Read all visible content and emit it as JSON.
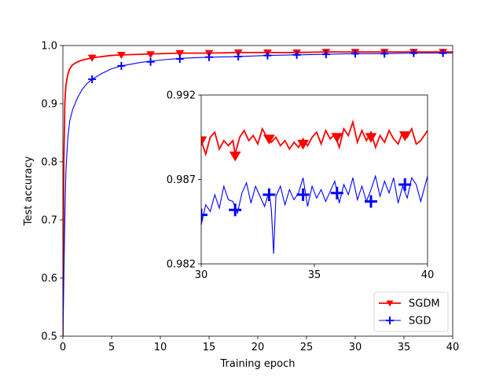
{
  "chart_data": [
    {
      "type": "line",
      "name": "main",
      "xlabel": "Training epoch",
      "ylabel": "Test accuracy",
      "xlim": [
        0,
        40
      ],
      "ylim": [
        0.5,
        1.0
      ],
      "xticks": [
        0,
        5,
        10,
        15,
        20,
        25,
        30,
        35,
        40
      ],
      "yticks": [
        0.5,
        0.6,
        0.7,
        0.8,
        0.9,
        1.0
      ],
      "xtick_labels": [
        "0",
        "5",
        "10",
        "15",
        "20",
        "25",
        "30",
        "35",
        "40"
      ],
      "ytick_labels": [
        "0.5",
        "0.6",
        "0.7",
        "0.8",
        "0.9",
        "1.0"
      ],
      "legend": {
        "position": "lower-right",
        "entries": [
          "SGDM",
          "SGD"
        ]
      },
      "series": [
        {
          "name": "SGDM",
          "color": "#ff0000",
          "marker": "triangle-down",
          "x": [
            0,
            0.1,
            0.2,
            0.3,
            0.5,
            0.7,
            1,
            1.5,
            2,
            3,
            4,
            5,
            6,
            8,
            10,
            12,
            15,
            18,
            21,
            24,
            27,
            30,
            33,
            36,
            40
          ],
          "y": [
            0.5,
            0.8,
            0.9,
            0.93,
            0.95,
            0.96,
            0.967,
            0.972,
            0.975,
            0.979,
            0.981,
            0.983,
            0.984,
            0.985,
            0.986,
            0.987,
            0.987,
            0.988,
            0.988,
            0.988,
            0.989,
            0.989,
            0.989,
            0.989,
            0.989
          ],
          "marker_x": [
            3,
            6,
            9,
            12,
            15,
            18,
            21,
            24,
            27,
            30,
            33,
            36,
            39
          ],
          "marker_y": [
            0.979,
            0.984,
            0.985,
            0.987,
            0.987,
            0.988,
            0.988,
            0.988,
            0.989,
            0.989,
            0.989,
            0.989,
            0.989
          ]
        },
        {
          "name": "SGD",
          "color": "#0000ff",
          "marker": "plus",
          "x": [
            0,
            0.1,
            0.2,
            0.3,
            0.5,
            0.7,
            1,
            1.5,
            2,
            2.5,
            3,
            4,
            5,
            6,
            7,
            8,
            10,
            12,
            15,
            18,
            21,
            24,
            27,
            30,
            33,
            36,
            40
          ],
          "y": [
            0.5,
            0.6,
            0.7,
            0.78,
            0.84,
            0.87,
            0.89,
            0.91,
            0.925,
            0.935,
            0.942,
            0.952,
            0.96,
            0.965,
            0.968,
            0.971,
            0.975,
            0.978,
            0.98,
            0.981,
            0.983,
            0.984,
            0.985,
            0.986,
            0.986,
            0.987,
            0.987
          ],
          "marker_x": [
            3,
            6,
            9,
            12,
            15,
            18,
            21,
            24,
            27,
            30,
            33,
            36,
            39
          ],
          "marker_y": [
            0.942,
            0.965,
            0.972,
            0.977,
            0.98,
            0.981,
            0.983,
            0.984,
            0.985,
            0.986,
            0.986,
            0.987,
            0.987
          ]
        }
      ]
    },
    {
      "type": "line",
      "name": "inset",
      "xlim": [
        30,
        40
      ],
      "ylim": [
        0.982,
        0.992
      ],
      "xticks": [
        30,
        35,
        40
      ],
      "yticks": [
        0.982,
        0.987,
        0.992
      ],
      "xtick_labels": [
        "30",
        "35",
        "40"
      ],
      "ytick_labels": [
        "0.982",
        "0.987",
        "0.992"
      ],
      "series": [
        {
          "name": "SGDM",
          "color": "#ff0000",
          "x": [
            30,
            30.2,
            30.4,
            30.6,
            30.8,
            31,
            31.2,
            31.4,
            31.5,
            31.7,
            31.9,
            32.1,
            32.3,
            32.5,
            32.7,
            32.9,
            33.1,
            33.3,
            33.5,
            33.7,
            33.9,
            34.1,
            34.3,
            34.5,
            34.7,
            34.9,
            35.1,
            35.3,
            35.5,
            35.7,
            35.9,
            36.1,
            36.3,
            36.5,
            36.7,
            36.9,
            37.1,
            37.3,
            37.5,
            37.7,
            37.9,
            38.1,
            38.3,
            38.5,
            38.7,
            38.9,
            39.1,
            39.3,
            39.5,
            39.7,
            40
          ],
          "y": [
            0.9893,
            0.9885,
            0.9895,
            0.9898,
            0.9888,
            0.9893,
            0.989,
            0.9893,
            0.9885,
            0.9895,
            0.9899,
            0.9893,
            0.9896,
            0.9891,
            0.99,
            0.9895,
            0.9892,
            0.9895,
            0.989,
            0.9893,
            0.9888,
            0.9892,
            0.9889,
            0.9894,
            0.989,
            0.9895,
            0.9898,
            0.9891,
            0.9899,
            0.9894,
            0.9897,
            0.9889,
            0.99,
            0.9896,
            0.9904,
            0.9892,
            0.9899,
            0.9893,
            0.9898,
            0.9889,
            0.9896,
            0.9892,
            0.9899,
            0.9894,
            0.9891,
            0.9898,
            0.9895,
            0.99,
            0.9891,
            0.9893,
            0.9899
          ],
          "marker_x": [
            30,
            31.5,
            33,
            34.5,
            36,
            37.5,
            39
          ],
          "marker_y": [
            0.9893,
            0.9884,
            0.9894,
            0.9891,
            0.9895,
            0.9895,
            0.9896
          ]
        },
        {
          "name": "SGD",
          "color": "#0000ff",
          "x": [
            30,
            30.2,
            30.4,
            30.6,
            30.8,
            31,
            31.2,
            31.4,
            31.6,
            31.8,
            32,
            32.2,
            32.4,
            32.6,
            32.8,
            33,
            33.1,
            33.2,
            33.3,
            33.5,
            33.7,
            33.9,
            34.1,
            34.3,
            34.5,
            34.7,
            34.9,
            35.1,
            35.3,
            35.5,
            35.7,
            35.9,
            36.1,
            36.3,
            36.5,
            36.7,
            36.9,
            37.1,
            37.3,
            37.5,
            37.7,
            37.9,
            38.1,
            38.3,
            38.5,
            38.7,
            38.9,
            39.1,
            39.3,
            39.5,
            39.7,
            40
          ],
          "y": [
            0.9843,
            0.9855,
            0.9851,
            0.9861,
            0.9853,
            0.9866,
            0.9858,
            0.9857,
            0.985,
            0.9862,
            0.9868,
            0.9856,
            0.9866,
            0.986,
            0.9854,
            0.9863,
            0.9852,
            0.9826,
            0.986,
            0.9866,
            0.9855,
            0.9864,
            0.9858,
            0.9862,
            0.9871,
            0.9854,
            0.9866,
            0.9859,
            0.9864,
            0.9857,
            0.9863,
            0.9869,
            0.9856,
            0.9867,
            0.9861,
            0.9871,
            0.9858,
            0.9866,
            0.9857,
            0.9864,
            0.9872,
            0.986,
            0.9869,
            0.9862,
            0.9871,
            0.9856,
            0.9866,
            0.9859,
            0.9871,
            0.9867,
            0.9857,
            0.9872
          ],
          "marker_x": [
            30,
            31.5,
            33,
            34.5,
            36,
            37.5,
            39
          ],
          "marker_y": [
            0.9849,
            0.9852,
            0.9861,
            0.9861,
            0.9862,
            0.9857,
            0.9867
          ]
        }
      ]
    }
  ]
}
